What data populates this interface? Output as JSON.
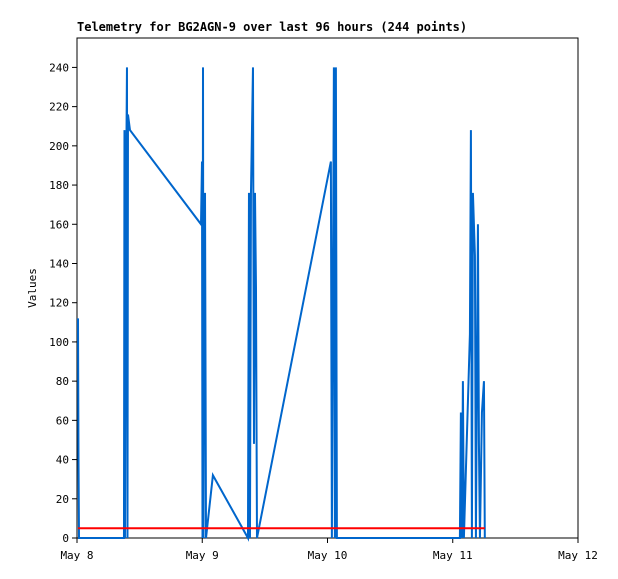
{
  "chart_data": {
    "type": "line",
    "title": "Telemetry for BG2AGN-9 over last 96 hours (244 points)",
    "y_label": "Values",
    "xlim": [
      0,
      4
    ],
    "xticks": [
      {
        "value": 0,
        "label": "May 8"
      },
      {
        "value": 1,
        "label": "May 9"
      },
      {
        "value": 2,
        "label": "May 10"
      },
      {
        "value": 3,
        "label": "May 11"
      },
      {
        "value": 4,
        "label": "May 12"
      }
    ],
    "ylim": [
      0,
      255
    ],
    "yticks": [
      0,
      20,
      40,
      60,
      80,
      100,
      120,
      140,
      160,
      180,
      200,
      220,
      240
    ],
    "grid": false,
    "series": [
      {
        "color": "#0066cc",
        "x": [
          0.008,
          0.012,
          0.016,
          0.375,
          0.379,
          0.383,
          0.391,
          0.399,
          0.403,
          0.407,
          0.423,
          0.99,
          0.998,
          1.002,
          1.006,
          1.01,
          1.014,
          1.022,
          1.03,
          1.085,
          1.365,
          1.373,
          1.381,
          1.389,
          1.405,
          1.413,
          1.421,
          1.429,
          1.437,
          2.027,
          2.035,
          2.051,
          2.059,
          2.067,
          2.075,
          3.057,
          3.065,
          3.073,
          3.081,
          3.089,
          3.137,
          3.145,
          3.153,
          3.161,
          3.177,
          3.185,
          3.201,
          3.209,
          3.217,
          3.233,
          3.249,
          3.256
        ],
        "values": [
          112,
          40,
          0,
          0,
          208,
          0,
          168,
          240,
          0,
          216,
          208,
          160,
          192,
          0,
          240,
          0,
          104,
          176,
          0,
          32,
          0,
          176,
          0,
          176,
          240,
          48,
          176,
          128,
          0,
          192,
          0,
          240,
          0,
          240,
          0,
          0,
          64,
          0,
          80,
          0,
          104,
          208,
          0,
          176,
          144,
          0,
          160,
          48,
          0,
          64,
          80,
          0
        ]
      },
      {
        "color": "#ff0000",
        "x": [
          0.008,
          3.256
        ],
        "values": [
          5,
          5
        ]
      }
    ]
  }
}
